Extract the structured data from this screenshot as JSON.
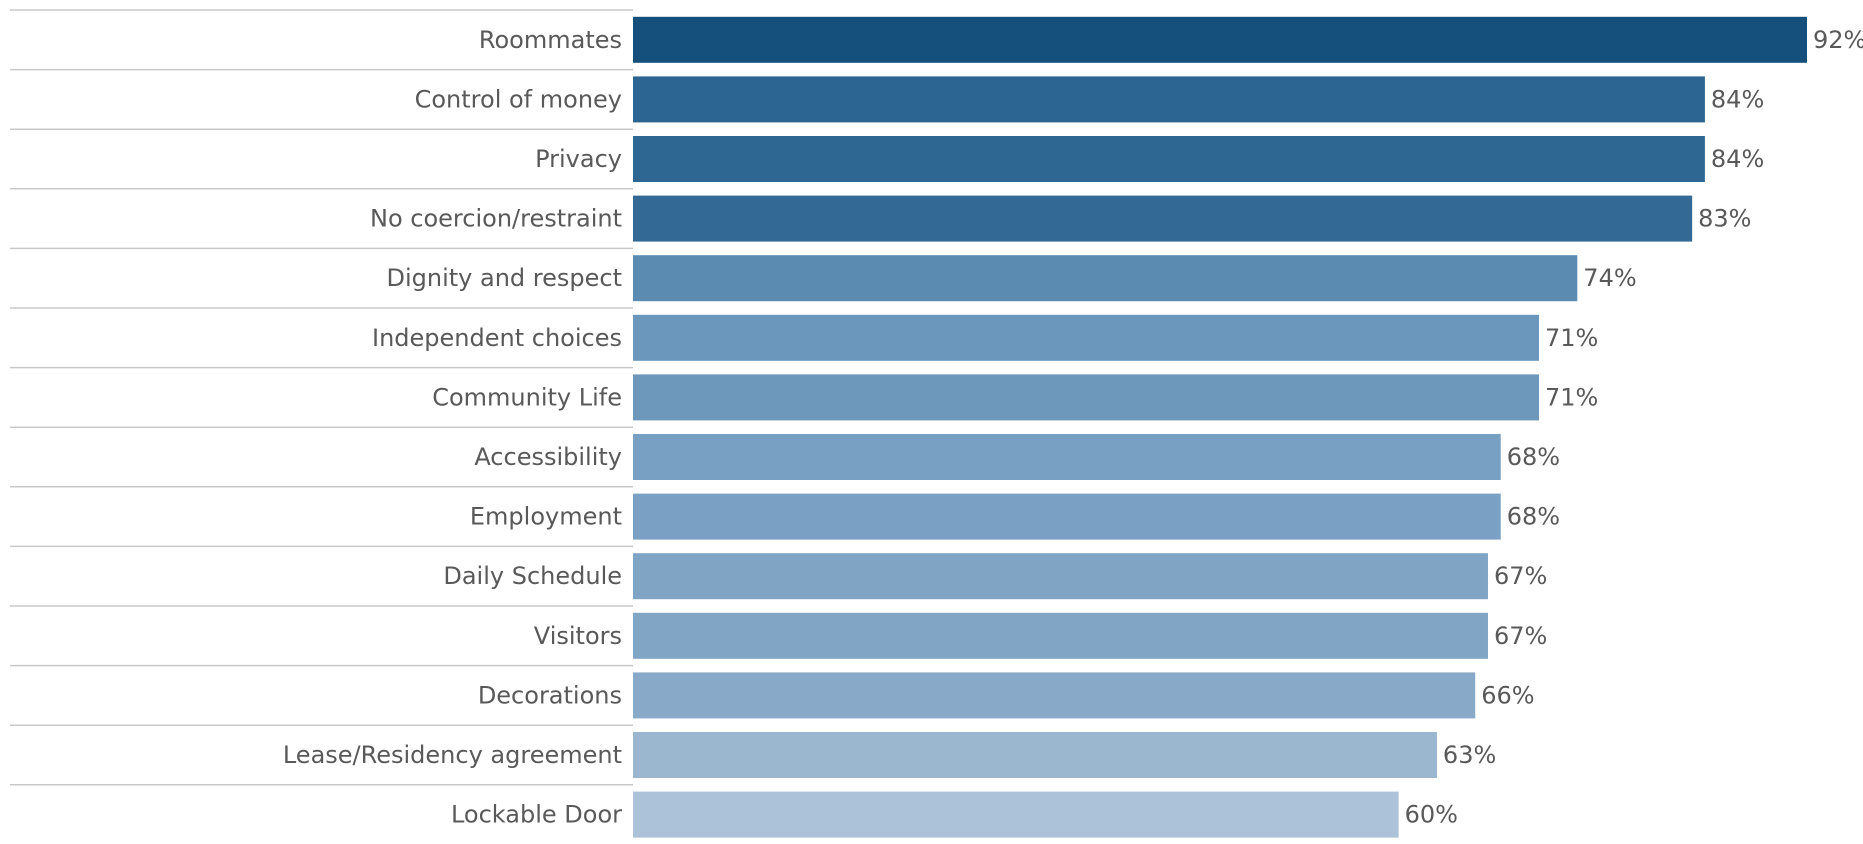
{
  "chart_data": {
    "type": "bar",
    "orientation": "horizontal",
    "title": "",
    "xlabel": "",
    "ylabel": "",
    "xlim": [
      0,
      92
    ],
    "grid": false,
    "legend": "none",
    "value_suffix": "%",
    "categories": [
      "Roommates",
      "Control of money",
      "Privacy",
      "No coercion/restraint",
      "Dignity and respect",
      "Independent choices",
      "Community Life",
      "Accessibility",
      "Employment",
      "Daily Schedule",
      "Visitors",
      "Decorations",
      "Lease/Residency agreement",
      "Lockable Door"
    ],
    "values": [
      92,
      84,
      84,
      83,
      74,
      71,
      71,
      68,
      68,
      67,
      67,
      66,
      63,
      60
    ],
    "data_labels": [
      "92%",
      "84%",
      "84%",
      "83%",
      "74%",
      "71%",
      "71%",
      "68%",
      "68%",
      "67%",
      "67%",
      "66%",
      "63%",
      "60%"
    ],
    "colors": [
      "#154f7c",
      "#2c6591",
      "#2e6792",
      "#336a95",
      "#5c8bb2",
      "#6a97bb",
      "#6d98bc",
      "#78a0c2",
      "#7aa1c3",
      "#7fa4c4",
      "#80a5c5",
      "#88aac8",
      "#9bb6cf",
      "#acc2d8"
    ],
    "separator_color": "#c8c8c8",
    "label_color": "#595959"
  }
}
